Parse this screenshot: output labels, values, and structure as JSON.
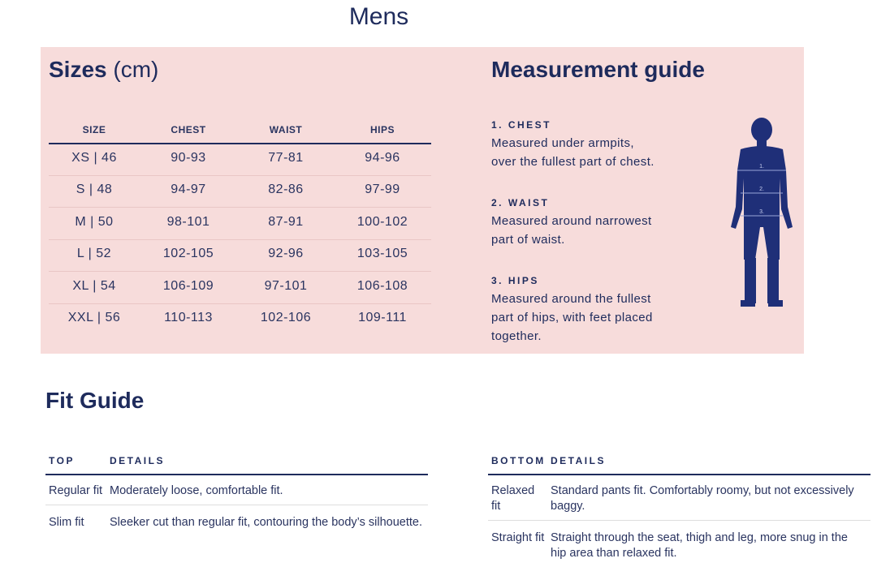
{
  "title": "Mens",
  "sizes": {
    "heading": "Sizes",
    "unit": "(cm)",
    "table": {
      "headers": [
        "SIZE",
        "CHEST",
        "WAIST",
        "HIPS"
      ],
      "rows": [
        [
          "XS | 46",
          "90-93",
          "77-81",
          "94-96"
        ],
        [
          "S | 48",
          "94-97",
          "82-86",
          "97-99"
        ],
        [
          "M | 50",
          "98-101",
          "87-91",
          "100-102"
        ],
        [
          "L | 52",
          "102-105",
          "92-96",
          "103-105"
        ],
        [
          "XL | 54",
          "106-109",
          "97-101",
          "106-108"
        ],
        [
          "XXL | 56",
          "110-113",
          "102-106",
          "109-111"
        ]
      ]
    }
  },
  "guide": {
    "title": "Measurement guide",
    "items": [
      {
        "label": "1. CHEST",
        "text": "Measured under armpits, over the fullest part of chest."
      },
      {
        "label": "2. WAIST",
        "text": "Measured around narrowest part of waist."
      },
      {
        "label": "3. HIPS",
        "text": "Measured around the fullest part of hips, with feet placed together."
      }
    ],
    "figure_labels": [
      "1.",
      "2.",
      "3."
    ]
  },
  "fit": {
    "title": "Fit Guide",
    "top": {
      "headers": [
        "TOP",
        "DETAILS"
      ],
      "rows": [
        [
          "Regular fit",
          "Moderately loose, comfortable fit."
        ],
        [
          "Slim fit",
          "Sleeker cut than regular fit, contouring the body’s silhouette."
        ]
      ]
    },
    "bottom": {
      "headers": [
        "BOTTOM",
        "DETAILS"
      ],
      "rows": [
        [
          "Relaxed fit",
          "Standard pants fit. Comfortably roomy, but not excessively baggy."
        ],
        [
          "Straight fit",
          "Straight through the seat, thigh and leg, more snug in the hip area than relaxed fit."
        ]
      ]
    }
  }
}
